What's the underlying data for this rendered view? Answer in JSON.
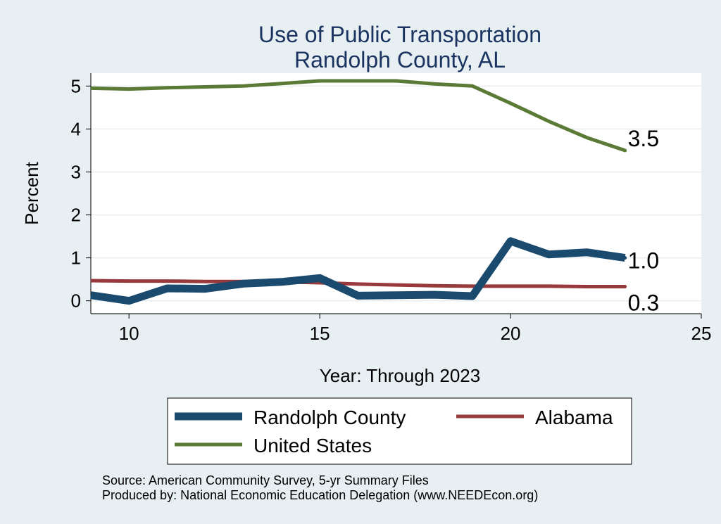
{
  "chart_data": {
    "type": "line",
    "title": [
      "Use of Public Transportation",
      "Randolph County, AL"
    ],
    "xlabel": "Year: Through 2023",
    "ylabel": "Percent",
    "xlim": [
      9,
      25
    ],
    "ylim": [
      -0.3,
      5.3
    ],
    "xticks": [
      10,
      15,
      20,
      25
    ],
    "yticks": [
      0,
      1,
      2,
      3,
      4,
      5
    ],
    "grid": true,
    "series": [
      {
        "name": "Randolph County",
        "color": "#1a4a6e",
        "width": 11,
        "x": [
          9,
          10,
          11,
          12,
          13,
          14,
          15,
          16,
          17,
          18,
          19,
          20,
          21,
          22,
          23
        ],
        "y": [
          0.13,
          0.0,
          0.29,
          0.28,
          0.4,
          0.44,
          0.53,
          0.12,
          0.13,
          0.14,
          0.11,
          1.39,
          1.08,
          1.13,
          1.0
        ],
        "end_label": "1.0"
      },
      {
        "name": "Alabama",
        "color": "#983a3c",
        "width": 5,
        "x": [
          9,
          10,
          11,
          12,
          13,
          14,
          15,
          16,
          17,
          18,
          19,
          20,
          21,
          22,
          23
        ],
        "y": [
          0.47,
          0.46,
          0.46,
          0.45,
          0.45,
          0.44,
          0.42,
          0.39,
          0.37,
          0.35,
          0.34,
          0.34,
          0.34,
          0.33,
          0.33
        ],
        "end_label": "0.3"
      },
      {
        "name": "United States",
        "color": "#5a7a35",
        "width": 5,
        "x": [
          9,
          10,
          11,
          12,
          13,
          14,
          15,
          16,
          17,
          18,
          19,
          20,
          21,
          22,
          23
        ],
        "y": [
          4.95,
          4.93,
          4.96,
          4.98,
          5.0,
          5.06,
          5.12,
          5.12,
          5.12,
          5.05,
          5.0,
          4.6,
          4.18,
          3.8,
          3.5
        ],
        "end_label": "3.5"
      }
    ],
    "legend": [
      "Randolph County",
      "Alabama",
      "United States"
    ],
    "notes": [
      "Source: American Community Survey, 5-yr Summary Files",
      "Produced by: National Economic Education Delegation (www.NEEDEcon.org)"
    ]
  }
}
